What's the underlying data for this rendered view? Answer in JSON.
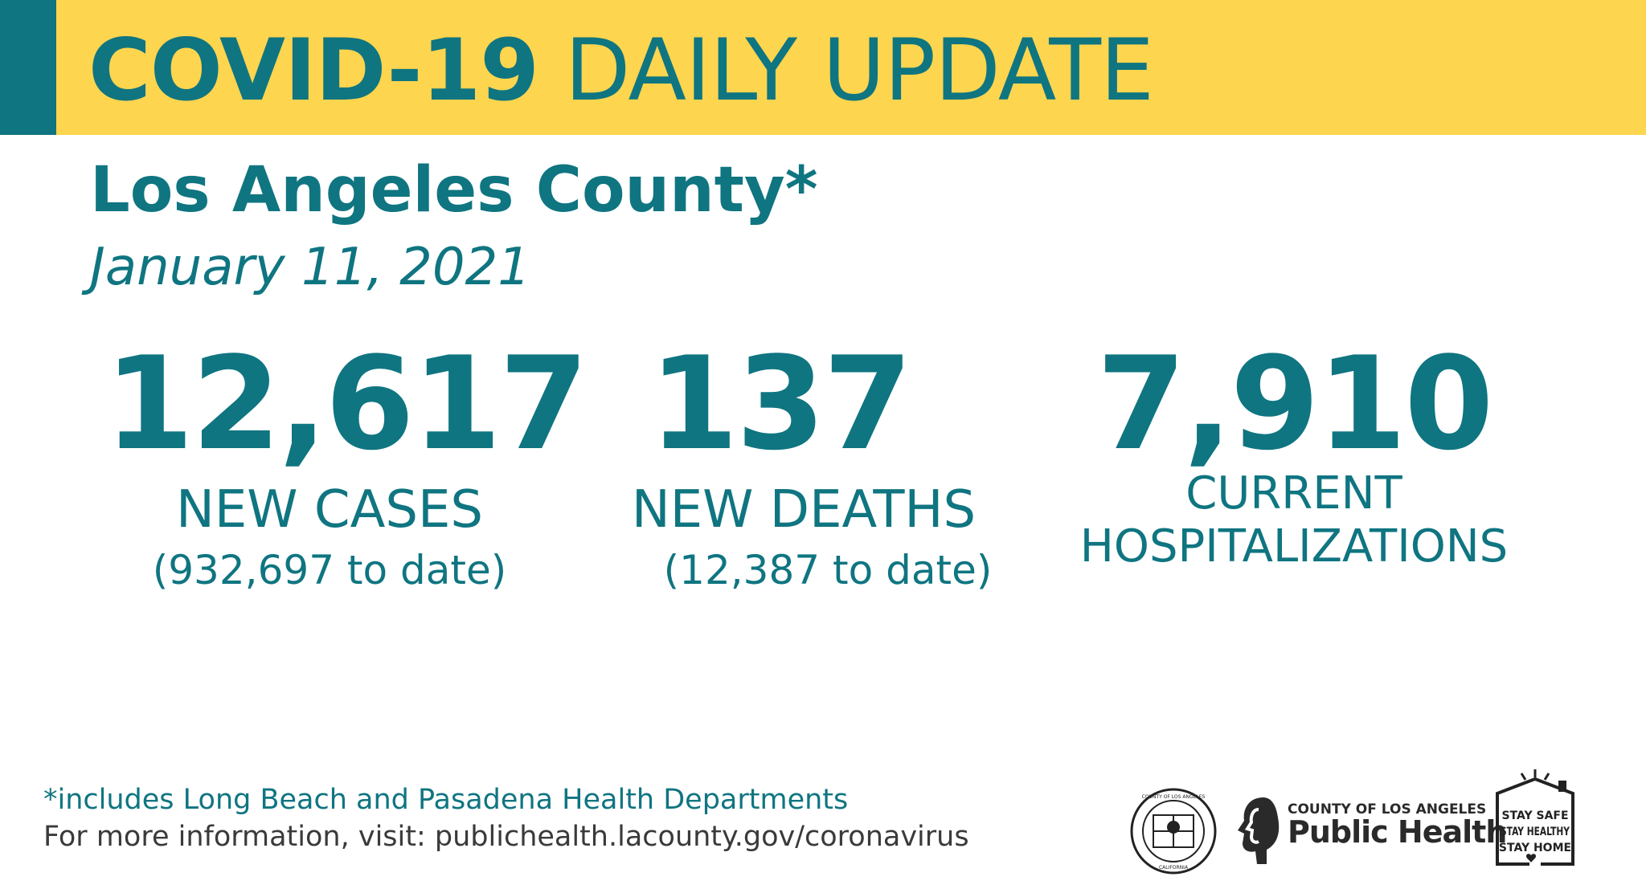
{
  "banner": {
    "title_bold": "COVID-19",
    "title_rest": "DAILY UPDATE"
  },
  "region": "Los Angeles County*",
  "date": "January 11, 2021",
  "stats": [
    {
      "value": "12,617",
      "label": "NEW CASES",
      "sub": "(932,697 to date)"
    },
    {
      "value": "137",
      "label": "NEW DEATHS",
      "sub": "(12,387 to date)"
    },
    {
      "value": "7,910",
      "label_line1": "CURRENT",
      "label_line2": "HOSPITALIZATIONS"
    }
  ],
  "footer": {
    "footnote": "*includes Long Beach and Pasadena Health Departments",
    "more_info": "For more information, visit: publichealth.lacounty.gov/coronavirus"
  },
  "logos": {
    "public_health_top": "COUNTY OF LOS ANGELES",
    "public_health_main": "Public Health",
    "seal_text_top": "COUNTY OF LOS ANGELES",
    "seal_text_bottom": "CALIFORNIA",
    "stay_lines": [
      "STAY SAFE",
      "STAY HEALTHY",
      "STAY HOME"
    ]
  },
  "colors": {
    "teal": "#0f7581",
    "yellow": "#fdd54f"
  }
}
